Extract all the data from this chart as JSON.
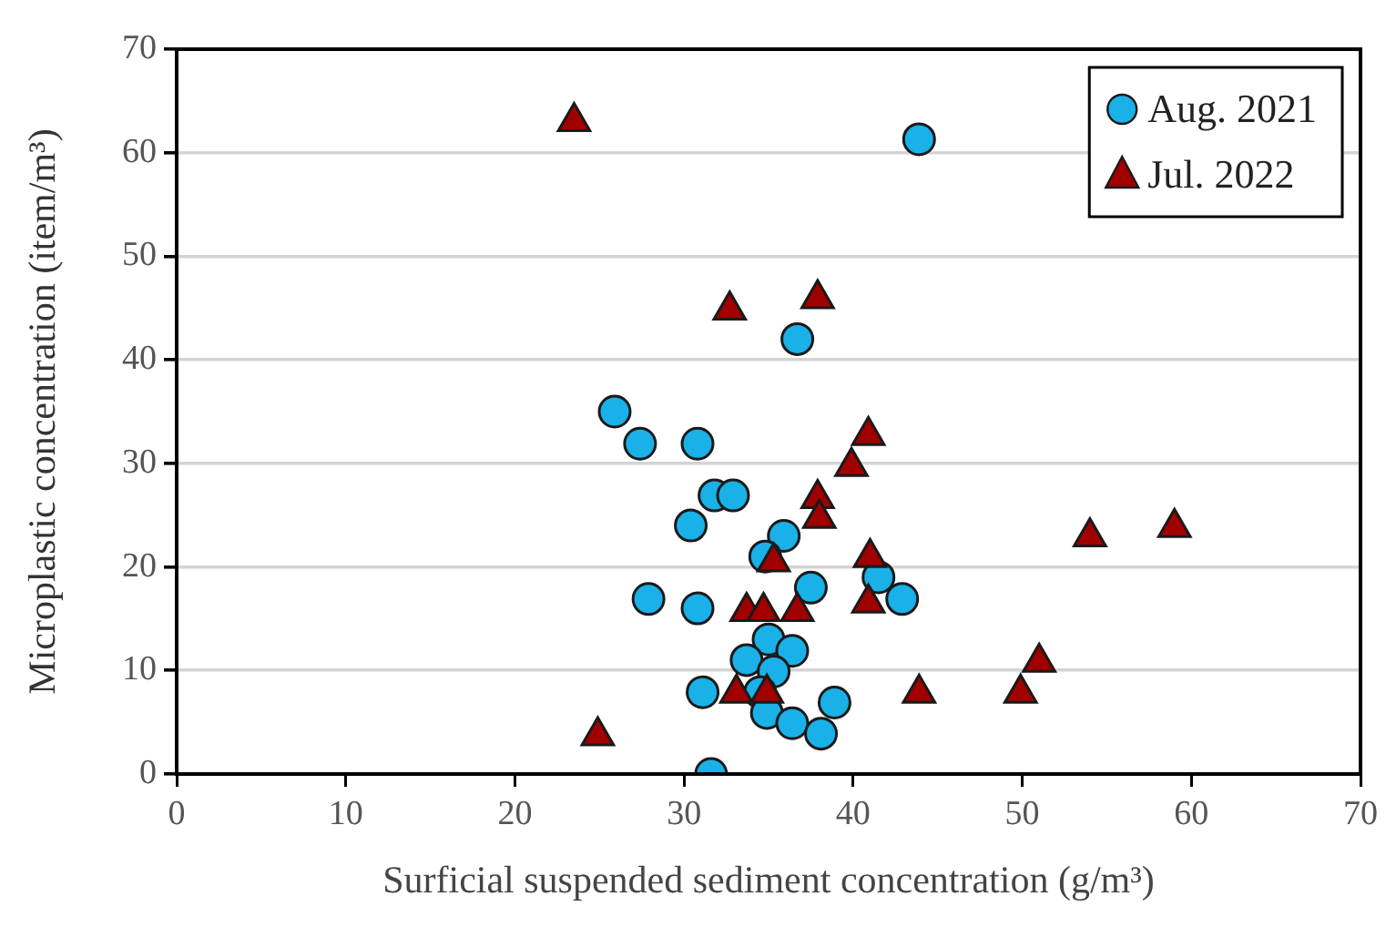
{
  "chart_data": {
    "type": "scatter",
    "xlabel": "Surficial suspended sediment concentration (g/m³)",
    "ylabel": "Microplastic concentration (item/m³)",
    "xlim": [
      0,
      70
    ],
    "xticks": [
      0,
      10,
      20,
      30,
      40,
      50,
      60,
      70
    ],
    "ylim": [
      0,
      70
    ],
    "yticks": [
      0,
      10,
      20,
      30,
      40,
      50,
      60,
      70
    ],
    "grid": "y",
    "legend": "top right",
    "series": [
      {
        "name": "Aug. 2021",
        "color": "#1ab0e8",
        "marker": "circle",
        "x": [
          25.9,
          27.4,
          30.8,
          31.8,
          32.9,
          30.4,
          35.9,
          34.8,
          37.5,
          41.5,
          42.9,
          27.9,
          30.8,
          35.0,
          36.4,
          33.7,
          35.3,
          31.1,
          34.5,
          34.9,
          36.4,
          38.1,
          38.9,
          31.6,
          36.7,
          43.9
        ],
        "values": [
          35,
          31.9,
          31.9,
          26.9,
          26.9,
          24,
          23,
          21,
          18,
          19,
          16.9,
          16.9,
          16,
          13,
          11.9,
          11,
          9.9,
          7.9,
          7.9,
          5.9,
          4.9,
          3.9,
          6.9,
          0,
          42,
          61.3
        ]
      },
      {
        "name": "Jul. 2022",
        "color": "#a00000",
        "marker": "triangle",
        "x": [
          32.7,
          37.9,
          40.9,
          39.9,
          37.9,
          38.0,
          35.3,
          41.0,
          40.9,
          33.7,
          34.7,
          36.7,
          33.1,
          34.9,
          43.9,
          24.9,
          54.0,
          59.0,
          51.0,
          49.9,
          23.5
        ],
        "values": [
          44.8,
          45.9,
          32.7,
          29.7,
          26.6,
          24.7,
          20.5,
          20.9,
          16.5,
          15.7,
          15.7,
          15.7,
          7.8,
          7.8,
          7.8,
          3.7,
          22.9,
          23.8,
          10.8,
          7.8,
          63
        ]
      }
    ]
  }
}
